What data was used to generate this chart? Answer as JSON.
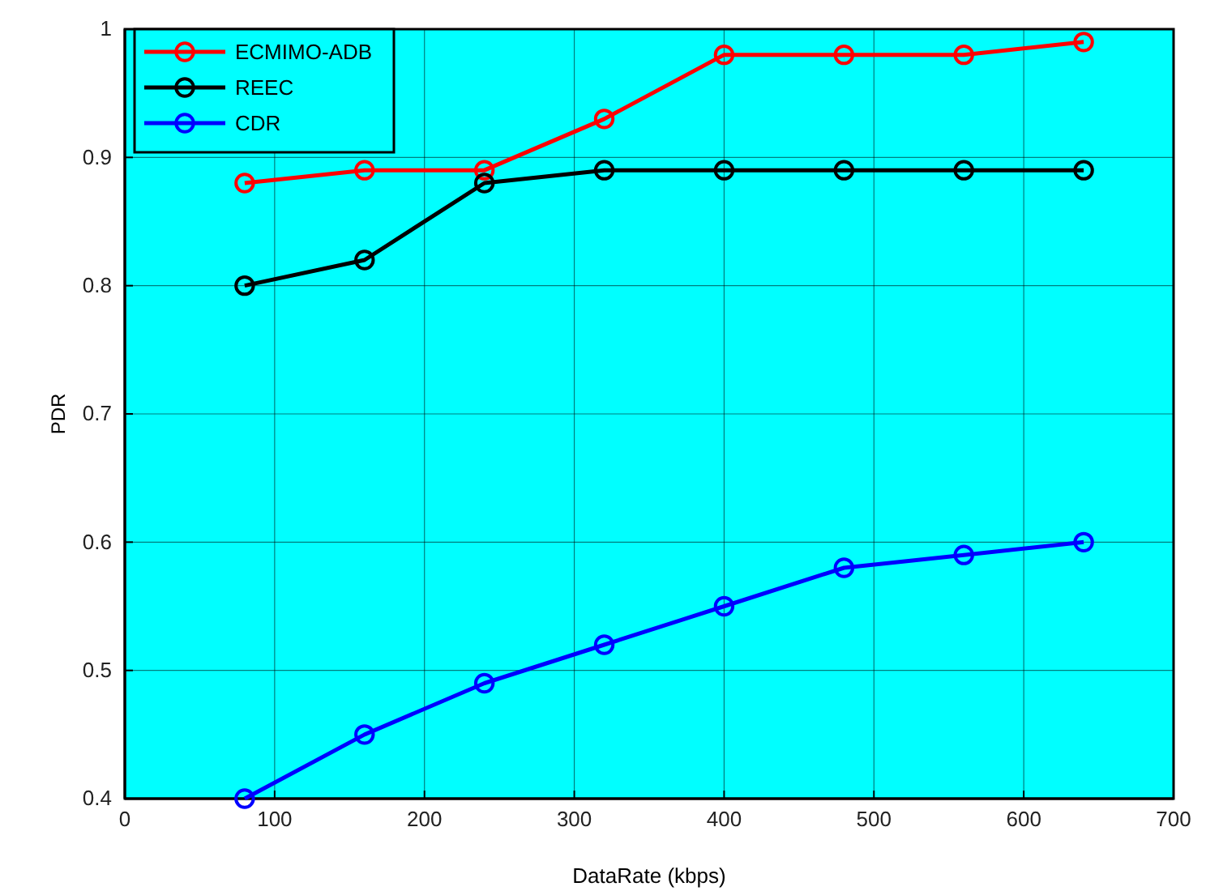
{
  "chart_data": {
    "type": "line",
    "xlabel": "DataRate (kbps)",
    "ylabel": "PDR",
    "x": [
      80,
      160,
      240,
      320,
      400,
      480,
      560,
      640
    ],
    "series": [
      {
        "name": "ECMIMO-ADB",
        "color": "#ff0000",
        "values": [
          0.88,
          0.89,
          0.89,
          0.93,
          0.98,
          0.98,
          0.98,
          0.99
        ]
      },
      {
        "name": "REEC",
        "color": "#000000",
        "values": [
          0.8,
          0.82,
          0.88,
          0.89,
          0.89,
          0.89,
          0.89,
          0.89
        ]
      },
      {
        "name": "CDR",
        "color": "#0000ff",
        "values": [
          0.4,
          0.45,
          0.49,
          0.52,
          0.55,
          0.58,
          0.59,
          0.6
        ]
      }
    ],
    "xlim": [
      0,
      700
    ],
    "xticks": [
      0,
      100,
      200,
      300,
      400,
      500,
      600,
      700
    ],
    "ylim": [
      0.4,
      1
    ],
    "yticks": [
      0.4,
      0.5,
      0.6,
      0.7,
      0.8,
      0.9,
      1
    ],
    "grid": true,
    "legend": "top left",
    "marker": "circle",
    "line_style": "solid"
  }
}
